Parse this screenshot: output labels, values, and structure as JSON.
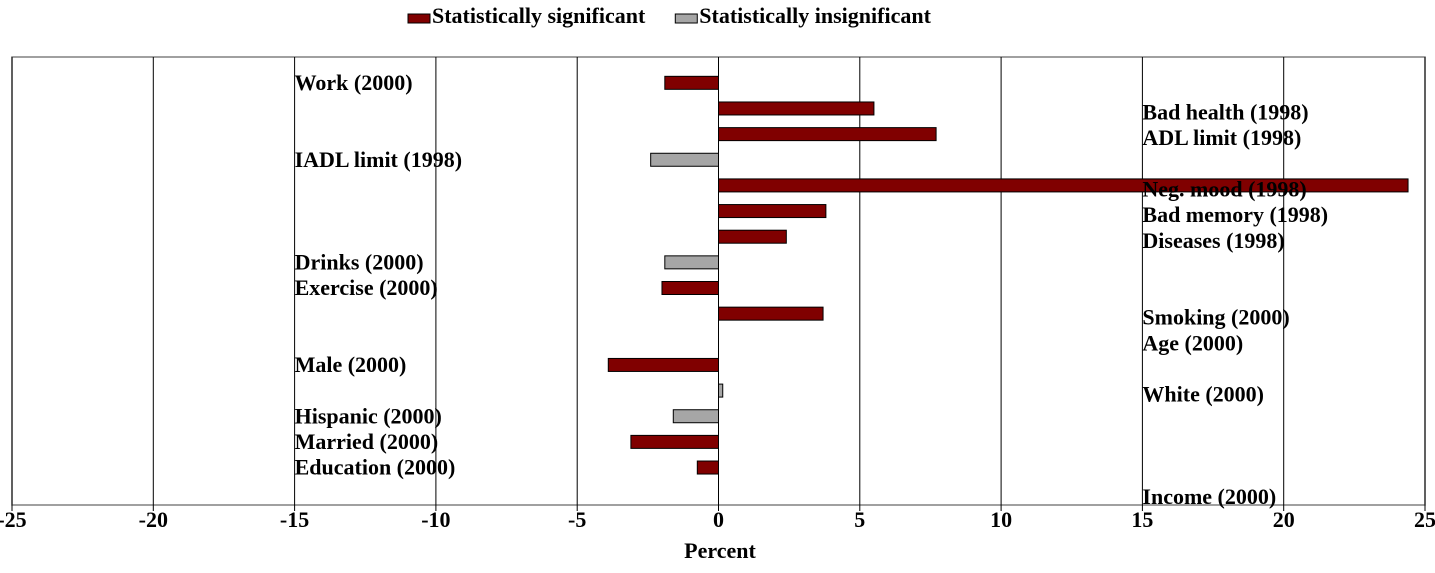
{
  "chart_data": {
    "type": "bar",
    "orientation": "horizontal",
    "x_label": "Percent",
    "categories": [
      "Work (2000)",
      "Bad health (1998)",
      "ADL limit (1998)",
      "IADL limit (1998)",
      "Neg. mood (1998)",
      "Bad memory (1998)",
      "Diseases (1998)",
      "Drinks (2000)",
      "Exercise (2000)",
      "Smoking (2000)",
      "Age (2000)",
      "Male (2000)",
      "White (2000)",
      "Hispanic (2000)",
      "Married (2000)",
      "Education (2000)",
      "Income (2000)"
    ],
    "series": [
      {
        "name": "Statistically significant",
        "color": "#800000",
        "values": [
          -1.9,
          5.5,
          7.7,
          null,
          24.4,
          3.8,
          2.4,
          null,
          -2.0,
          3.7,
          0,
          -3.9,
          null,
          null,
          -3.1,
          -0.75,
          0
        ]
      },
      {
        "name": "Statistically insignificant",
        "color": "#a6a6a6",
        "values": [
          null,
          null,
          null,
          -2.4,
          null,
          null,
          null,
          -1.9,
          null,
          null,
          null,
          null,
          0.15,
          -1.6,
          null,
          null,
          null
        ]
      }
    ],
    "xlim": [
      -25,
      25
    ],
    "xticks": [
      -25,
      -20,
      -15,
      -10,
      -5,
      0,
      5,
      10,
      15,
      20,
      25
    ],
    "grid": true,
    "legend": "top"
  }
}
